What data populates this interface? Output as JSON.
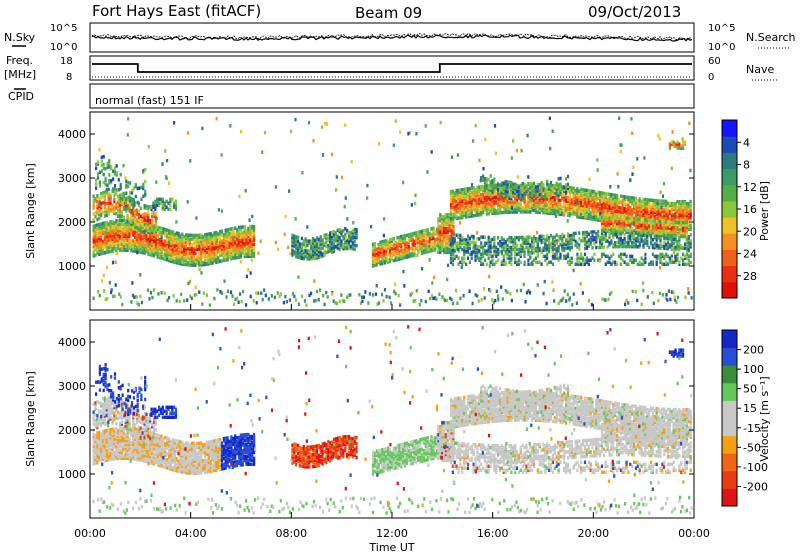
{
  "header": {
    "station": "Fort Hays East (fitACF)",
    "beam": "Beam 09",
    "date": "09/Oct/2013"
  },
  "summary": {
    "nsky_label": "N.Sky",
    "nsearch_label": "N.Search",
    "noise_ticks": [
      "10^5",
      "10^0"
    ],
    "freq_label": "Freq.",
    "freq_unit": "[MHz]",
    "freq_ticks": [
      "18",
      "8"
    ],
    "nave_label": "Nave",
    "nave_ticks": [
      "60",
      "0"
    ],
    "cpid_label": "CPID",
    "cpid_text": "normal (fast) 151 IF"
  },
  "chart_data": [
    {
      "type": "heatmap",
      "name": "power",
      "ylabel": "Slant Range [km]",
      "yticks": [
        1000,
        2000,
        3000,
        4000
      ],
      "ylim": [
        0,
        4500
      ],
      "xlim": [
        0,
        24
      ],
      "colorbar": {
        "label": "Power [dB]",
        "ticks": [
          "4",
          "8",
          "12",
          "16",
          "20",
          "24",
          "28"
        ],
        "colors": [
          "#1414ff",
          "#1e4ab4",
          "#2d7a82",
          "#3c9a64",
          "#52b046",
          "#8cc83c",
          "#f0c028",
          "#f59020",
          "#f06018",
          "#e83010",
          "#e01008"
        ]
      }
    },
    {
      "type": "heatmap",
      "name": "velocity",
      "ylabel": "Slant Range [km]",
      "yticks": [
        1000,
        2000,
        3000,
        4000
      ],
      "ylim": [
        0,
        4500
      ],
      "xlim": [
        0,
        24
      ],
      "colorbar": {
        "label": "Velocity [m s⁻¹]",
        "ticks": [
          "200",
          "100",
          "50",
          "15",
          "-15",
          "-50",
          "-100",
          "-200"
        ],
        "colors": [
          "#1428c8",
          "#2850d2",
          "#3c8c3c",
          "#64c85a",
          "#c8c8c8",
          "#c8c8c8",
          "#f5a014",
          "#f06414",
          "#e83c14",
          "#e01414"
        ]
      }
    }
  ],
  "xaxis": {
    "label": "Time UT",
    "ticks": [
      "00:00",
      "04:00",
      "08:00",
      "12:00",
      "16:00",
      "20:00",
      "00:00"
    ]
  }
}
